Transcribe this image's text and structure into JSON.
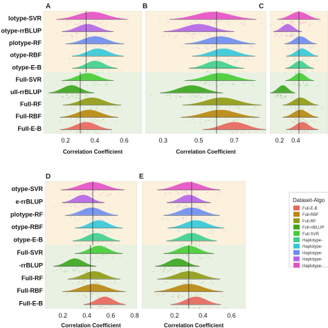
{
  "panels": [
    {
      "label": "A"
    },
    {
      "label": "B"
    },
    {
      "label": "C"
    },
    {
      "label": "D"
    },
    {
      "label": "E"
    }
  ],
  "legend": {
    "title": "Dataset-Algo",
    "items": [
      {
        "label": "Full-E-B",
        "color": "#e8655a"
      },
      {
        "label": "Full-RBF",
        "color": "#b8860b"
      },
      {
        "label": "Full-RF",
        "color": "#8f9a12"
      },
      {
        "label": "Full-rrBLUP",
        "color": "#3aa51c"
      },
      {
        "label": "Full-SVR",
        "color": "#44cc33"
      },
      {
        "label": "Haplotype-",
        "color": "#3ccf8e"
      },
      {
        "label": "Haplotype-",
        "color": "#33c8d8"
      },
      {
        "label": "Haplotype-",
        "color": "#6b8cf0"
      },
      {
        "label": "Haplotype-",
        "color": "#b564e8"
      },
      {
        "label": "Haplotype-",
        "color": "#e64fc8"
      }
    ]
  },
  "chart_data": [
    {
      "type": "raincloud",
      "panel": "A",
      "categories": [
        "lotype-SVR",
        "otype-rrBLUP",
        "plotype-RF",
        "otype-RBF",
        "otype-E-B",
        "Full-SVR",
        "ull-rrBLUP",
        "Full-RF",
        "Full-RBF",
        "Full-E-B"
      ],
      "xlabel": "Correlation Coefficient",
      "xlim": [
        0.05,
        0.72
      ],
      "xticks": [
        "0.2",
        "0.4",
        "0.6"
      ],
      "xtick_values": [
        0.2,
        0.4,
        0.6
      ],
      "vlines": [
        {
          "x": 0.34,
          "rows": "haplotype"
        },
        {
          "x": 0.3,
          "rows": "full"
        }
      ],
      "series": [
        {
          "name": "Haplotype-SVR",
          "color": "#e64fc8",
          "center": 0.38,
          "spread": 0.11
        },
        {
          "name": "Haplotype-rrBLUP",
          "color": "#b564e8",
          "center": 0.35,
          "spread": 0.08
        },
        {
          "name": "Haplotype-RF",
          "color": "#6b8cf0",
          "center": 0.4,
          "spread": 0.09
        },
        {
          "name": "Haplotype-RBF",
          "color": "#33c8d8",
          "center": 0.42,
          "spread": 0.08
        },
        {
          "name": "Haplotype-E-B",
          "color": "#3ccf8e",
          "center": 0.4,
          "spread": 0.07
        },
        {
          "name": "Full-SVR",
          "color": "#44cc33",
          "center": 0.35,
          "spread": 0.08
        },
        {
          "name": "Full-rrBLUP",
          "color": "#3aa51c",
          "center": 0.24,
          "spread": 0.07
        },
        {
          "name": "Full-RF",
          "color": "#8f9a12",
          "center": 0.38,
          "spread": 0.09
        },
        {
          "name": "Full-RBF",
          "color": "#b8860b",
          "center": 0.36,
          "spread": 0.09
        },
        {
          "name": "Full-E-B",
          "color": "#e8655a",
          "center": 0.34,
          "spread": 0.08
        }
      ]
    },
    {
      "type": "raincloud",
      "panel": "B",
      "xlabel": "Correlation Coefficient",
      "xlim": [
        0.2,
        0.88
      ],
      "xticks": [
        "0.3",
        "0.5",
        "0.7"
      ],
      "xtick_values": [
        0.3,
        0.5,
        0.7
      ],
      "vlines": [
        {
          "x": 0.6,
          "rows": "all"
        }
      ],
      "series": [
        {
          "name": "Haplotype-SVR",
          "center": 0.58,
          "spread": 0.11
        },
        {
          "name": "Haplotype-rrBLUP",
          "center": 0.5,
          "spread": 0.09
        },
        {
          "name": "Haplotype-RF",
          "center": 0.62,
          "spread": 0.09
        },
        {
          "name": "Haplotype-RBF",
          "center": 0.64,
          "spread": 0.08
        },
        {
          "name": "Haplotype-E-B",
          "center": 0.6,
          "spread": 0.07
        },
        {
          "name": "Full-SVR",
          "center": 0.62,
          "spread": 0.09
        },
        {
          "name": "Full-rrBLUP",
          "center": 0.46,
          "spread": 0.08
        },
        {
          "name": "Full-RF",
          "center": 0.63,
          "spread": 0.1
        },
        {
          "name": "Full-RBF",
          "center": 0.62,
          "spread": 0.1
        },
        {
          "name": "Full-E-B",
          "center": 0.7,
          "spread": 0.08
        }
      ]
    },
    {
      "type": "raincloud",
      "panel": "C",
      "xlabel": "",
      "xlim": [
        0.08,
        0.8
      ],
      "xticks": [
        "0.2",
        "0.4"
      ],
      "xtick_values": [
        0.2,
        0.4
      ],
      "vlines": [
        {
          "x": 0.44,
          "rows": "all"
        }
      ],
      "series": [
        {
          "name": "Haplotype-SVR",
          "center": 0.44,
          "spread": 0.12
        },
        {
          "name": "Haplotype-rrBLUP",
          "center": 0.3,
          "spread": 0.08
        },
        {
          "name": "Haplotype-RF",
          "center": 0.46,
          "spread": 0.09
        },
        {
          "name": "Haplotype-RBF",
          "center": 0.48,
          "spread": 0.09
        },
        {
          "name": "Haplotype-E-B",
          "center": 0.45,
          "spread": 0.08
        },
        {
          "name": "Full-SVR",
          "center": 0.45,
          "spread": 0.08
        },
        {
          "name": "Full-rrBLUP",
          "center": 0.24,
          "spread": 0.07
        },
        {
          "name": "Full-RF",
          "center": 0.46,
          "spread": 0.1
        },
        {
          "name": "Full-RBF",
          "center": 0.46,
          "spread": 0.1
        },
        {
          "name": "Full-E-B",
          "center": 0.48,
          "spread": 0.09
        }
      ]
    },
    {
      "type": "raincloud",
      "panel": "D",
      "categories": [
        "otype-SVR",
        "e-rrBLUP",
        "plotype-RF",
        "otype-RBF",
        "otype-E-B",
        "Full-SVR",
        "-rrBLUP",
        "Full-RF",
        "Full-RBF",
        "Full-E-B"
      ],
      "xlabel": "Correlation Coefficient",
      "xlim": [
        0.05,
        0.82
      ],
      "xticks": [
        "0.2",
        "0.4",
        "0.6",
        "0.8"
      ],
      "xtick_values": [
        0.2,
        0.4,
        0.6,
        0.8
      ],
      "vlines": [
        {
          "x": 0.45,
          "rows": "haplotype"
        },
        {
          "x": 0.43,
          "rows": "full"
        }
      ],
      "series": [
        {
          "name": "Haplotype-SVR",
          "center": 0.45,
          "spread": 0.12
        },
        {
          "name": "Haplotype-rrBLUP",
          "center": 0.37,
          "spread": 0.08
        },
        {
          "name": "Haplotype-RF",
          "center": 0.44,
          "spread": 0.1
        },
        {
          "name": "Haplotype-RBF",
          "center": 0.5,
          "spread": 0.09
        },
        {
          "name": "Haplotype-E-B",
          "center": 0.48,
          "spread": 0.09
        },
        {
          "name": "Full-SVR",
          "center": 0.5,
          "spread": 0.09
        },
        {
          "name": "Full-rrBLUP",
          "center": 0.3,
          "spread": 0.08
        },
        {
          "name": "Full-RF",
          "center": 0.46,
          "spread": 0.1
        },
        {
          "name": "Full-RBF",
          "center": 0.46,
          "spread": 0.12
        },
        {
          "name": "Full-E-B",
          "center": 0.55,
          "spread": 0.08
        }
      ]
    },
    {
      "type": "raincloud",
      "panel": "E",
      "xlabel": "Correlation Coefficient",
      "xlim": [
        -0.03,
        0.7
      ],
      "xticks": [
        "0.2",
        "0.4",
        "0.6"
      ],
      "xtick_values": [
        0.2,
        0.4,
        0.6
      ],
      "vlines": [
        {
          "x": 0.32,
          "rows": "haplotype"
        },
        {
          "x": 0.3,
          "rows": "full"
        }
      ],
      "series": [
        {
          "name": "Haplotype-SVR",
          "center": 0.3,
          "spread": 0.1
        },
        {
          "name": "Haplotype-rrBLUP",
          "center": 0.3,
          "spread": 0.07
        },
        {
          "name": "Haplotype-RF",
          "center": 0.32,
          "spread": 0.09
        },
        {
          "name": "Haplotype-RBF",
          "center": 0.35,
          "spread": 0.09
        },
        {
          "name": "Haplotype-E-B",
          "center": 0.32,
          "spread": 0.08
        },
        {
          "name": "Full-SVR",
          "center": 0.3,
          "spread": 0.08
        },
        {
          "name": "Full-rrBLUP",
          "center": 0.22,
          "spread": 0.07
        },
        {
          "name": "Full-RF",
          "center": 0.3,
          "spread": 0.1
        },
        {
          "name": "Full-RBF",
          "center": 0.3,
          "spread": 0.11
        },
        {
          "name": "Full-E-B",
          "center": 0.35,
          "spread": 0.08
        }
      ]
    }
  ]
}
